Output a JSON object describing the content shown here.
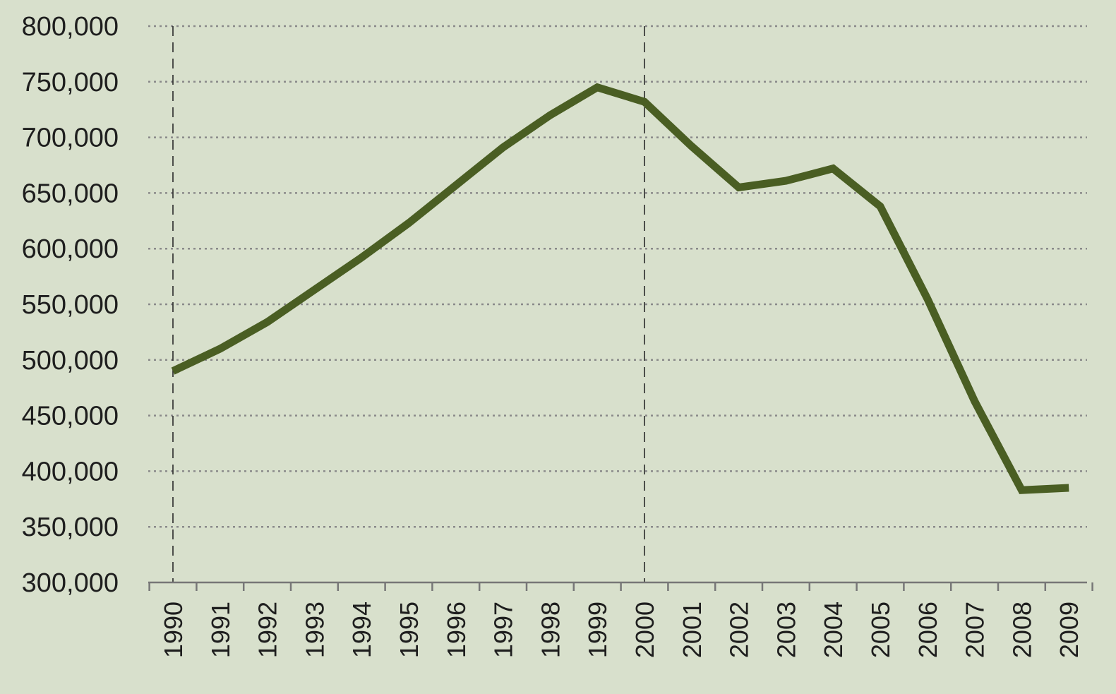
{
  "chart_data": {
    "type": "line",
    "title": "",
    "xlabel": "",
    "ylabel": "",
    "x": [
      "1990",
      "1991",
      "1992",
      "1993",
      "1994",
      "1995",
      "1996",
      "1997",
      "1998",
      "1999",
      "2000",
      "2001",
      "2002",
      "2003",
      "2004",
      "2005",
      "2006",
      "2007",
      "2008",
      "2009"
    ],
    "series": [
      {
        "values": [
          490000,
          510000,
          534000,
          563000,
          592000,
          623000,
          657000,
          691000,
          720000,
          745000,
          732000,
          692000,
          655000,
          661000,
          672000,
          638000,
          555000,
          463000,
          383000,
          385000
        ],
        "color": "#4a5e23"
      }
    ],
    "ylim": [
      300000,
      800000
    ],
    "yticks": [
      300000,
      350000,
      400000,
      450000,
      500000,
      550000,
      600000,
      650000,
      700000,
      750000,
      800000
    ],
    "ytick_labels": [
      "300,000",
      "350,000",
      "400,000",
      "450,000",
      "500,000",
      "550,000",
      "600,000",
      "650,000",
      "700,000",
      "750,000",
      "800,000"
    ],
    "reference_lines_x": [
      "1990",
      "2000"
    ],
    "grid": "horizontal dotted",
    "legend": "none"
  }
}
